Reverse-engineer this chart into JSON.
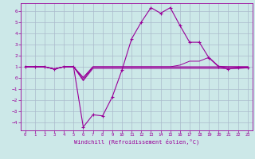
{
  "xlabel": "Windchill (Refroidissement éolien,°C)",
  "background_color": "#cce8e8",
  "grid_color": "#aabbcc",
  "line_color": "#990099",
  "xlim": [
    -0.5,
    23.5
  ],
  "ylim": [
    -4.7,
    6.7
  ],
  "yticks": [
    -4,
    -3,
    -2,
    -1,
    0,
    1,
    2,
    3,
    4,
    5,
    6
  ],
  "xticks": [
    0,
    1,
    2,
    3,
    4,
    5,
    6,
    7,
    8,
    9,
    10,
    11,
    12,
    13,
    14,
    15,
    16,
    17,
    18,
    19,
    20,
    21,
    22,
    23
  ],
  "series_main_x": [
    0,
    1,
    2,
    3,
    4,
    5,
    6,
    7,
    8,
    9,
    10,
    11,
    12,
    13,
    14,
    15,
    16,
    17,
    18,
    19,
    20,
    21,
    22,
    23
  ],
  "series_main_y": [
    1.0,
    1.0,
    1.0,
    0.8,
    1.0,
    1.0,
    -4.4,
    -3.3,
    -3.4,
    -1.7,
    0.7,
    3.5,
    5.0,
    6.3,
    5.8,
    6.3,
    4.7,
    3.2,
    3.2,
    1.8,
    1.0,
    0.8,
    0.9,
    0.9
  ],
  "series_flat": [
    [
      1.0,
      1.0,
      1.0,
      0.8,
      1.0,
      1.0,
      -0.25,
      0.85,
      0.85,
      0.85,
      0.85,
      0.85,
      0.85,
      0.85,
      0.85,
      0.85,
      0.85,
      0.85,
      0.85,
      0.85,
      0.85,
      0.85,
      0.85,
      0.9
    ],
    [
      1.0,
      1.0,
      1.0,
      0.8,
      1.0,
      1.0,
      -0.15,
      0.95,
      0.95,
      0.95,
      0.95,
      0.95,
      0.95,
      0.95,
      0.95,
      0.95,
      0.95,
      0.95,
      0.95,
      0.95,
      0.95,
      0.95,
      0.95,
      0.95
    ],
    [
      1.0,
      1.0,
      1.0,
      0.8,
      1.0,
      1.0,
      0.0,
      1.0,
      1.0,
      1.0,
      1.0,
      1.0,
      1.0,
      1.0,
      1.0,
      1.0,
      1.0,
      1.0,
      1.0,
      1.0,
      1.0,
      1.0,
      1.0,
      1.0
    ],
    [
      1.0,
      1.0,
      1.0,
      0.8,
      1.0,
      1.0,
      0.05,
      1.0,
      1.0,
      1.0,
      1.0,
      1.0,
      1.0,
      1.0,
      1.0,
      1.0,
      1.15,
      1.5,
      1.5,
      1.85,
      1.05,
      1.0,
      1.0,
      1.0
    ]
  ]
}
